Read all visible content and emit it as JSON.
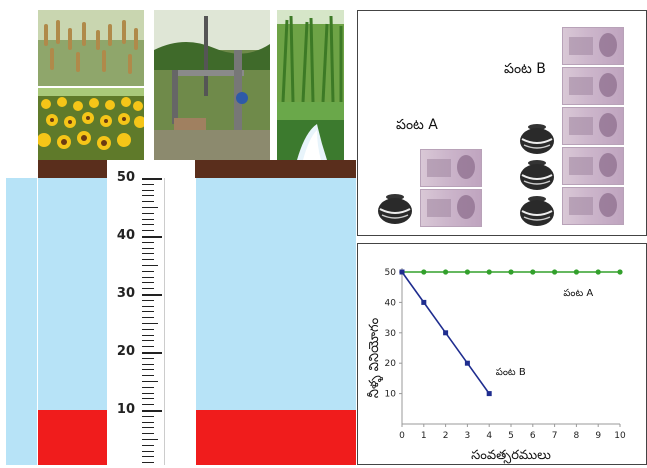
{
  "ruler": {
    "labels": [
      "50",
      "40",
      "30",
      "20",
      "10"
    ]
  },
  "crops": {
    "a_label": "పంట A",
    "b_label": "పంట B"
  },
  "chart_data": {
    "type": "line",
    "xlabel": "సంవత్సరములు",
    "ylabel": "నీళ్ళ వినియోగం",
    "xlim": [
      0,
      10
    ],
    "ylim": [
      0,
      50
    ],
    "x_ticks": [
      "0",
      "1",
      "2",
      "3",
      "4",
      "5",
      "6",
      "7",
      "8",
      "9",
      "10"
    ],
    "y_ticks": [
      "50",
      "40",
      "30",
      "20",
      "10"
    ],
    "series": [
      {
        "name": "పంట A",
        "color": "#33a02c",
        "x": [
          0,
          1,
          2,
          3,
          4,
          5,
          6,
          7,
          8,
          9,
          10
        ],
        "y": [
          50,
          50,
          50,
          50,
          50,
          50,
          50,
          50,
          50,
          50,
          50
        ]
      },
      {
        "name": "పంట B",
        "color": "#1f2d8f",
        "x": [
          0,
          1,
          2,
          3,
          4
        ],
        "y": [
          50,
          40,
          30,
          20,
          10
        ]
      }
    ]
  }
}
